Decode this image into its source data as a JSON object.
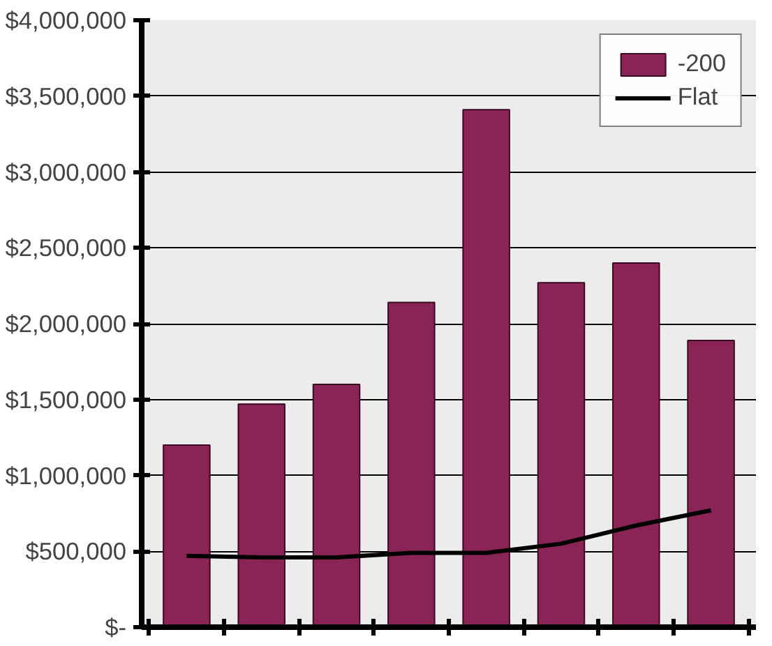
{
  "chart_data": {
    "type": "bar",
    "categories": [
      null,
      null,
      null,
      null,
      null,
      null,
      null,
      null
    ],
    "series": [
      {
        "name": "-200",
        "color": "#8b2456",
        "values": [
          1200000,
          1470000,
          1600000,
          2140000,
          3410000,
          2270000,
          2400000,
          1890000
        ]
      },
      {
        "name": "Flat",
        "color": "#000000",
        "type": "line",
        "values": [
          470000,
          460000,
          460000,
          490000,
          490000,
          550000,
          670000,
          770000
        ]
      }
    ],
    "ylim": [
      0,
      4000000
    ],
    "yticks": [
      {
        "value": 0,
        "label": "$-"
      },
      {
        "value": 500000,
        "label": "$500,000"
      },
      {
        "value": 1000000,
        "label": "$1,000,000"
      },
      {
        "value": 1500000,
        "label": "$1,500,000"
      },
      {
        "value": 2000000,
        "label": "$2,000,000"
      },
      {
        "value": 2500000,
        "label": "$2,500,000"
      },
      {
        "value": 3000000,
        "label": "$3,000,000"
      },
      {
        "value": 3500000,
        "label": "$3,500,000"
      },
      {
        "value": 4000000,
        "label": "$4,000,000"
      }
    ],
    "grid": "y",
    "legend": "top right",
    "tick_labels": "y",
    "marker": "none",
    "line_style": "solid"
  }
}
